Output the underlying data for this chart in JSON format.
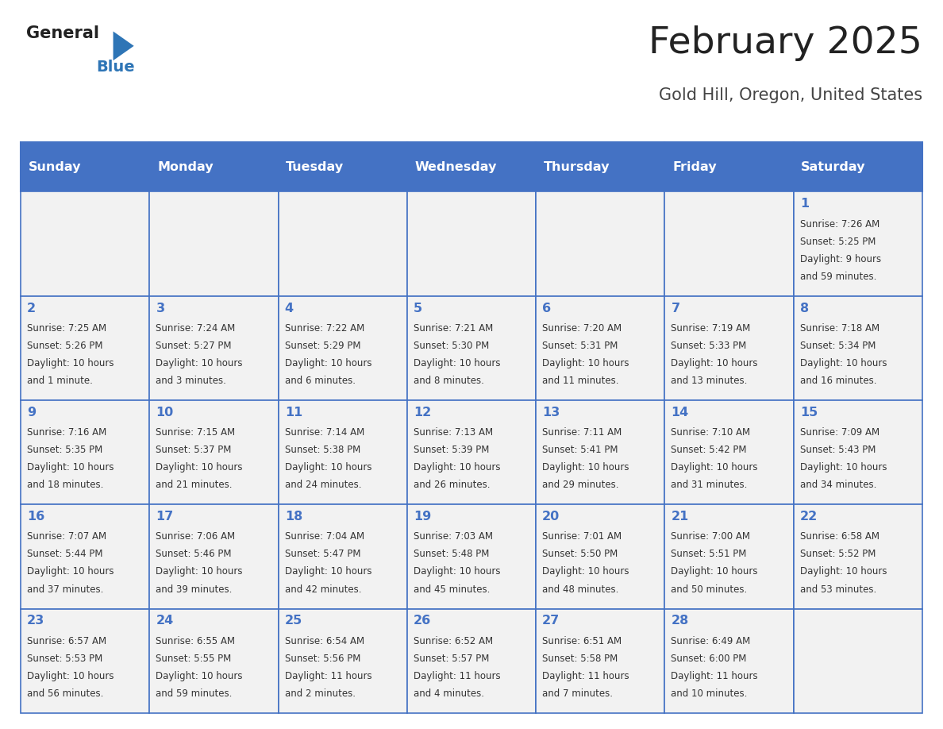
{
  "title": "February 2025",
  "subtitle": "Gold Hill, Oregon, United States",
  "header_bg": "#4472C4",
  "header_text_color": "#FFFFFF",
  "cell_bg": "#F2F2F2",
  "border_color": "#4472C4",
  "day_names": [
    "Sunday",
    "Monday",
    "Tuesday",
    "Wednesday",
    "Thursday",
    "Friday",
    "Saturday"
  ],
  "title_color": "#222222",
  "subtitle_color": "#444444",
  "day_number_color": "#4472C4",
  "info_color": "#333333",
  "logo_general_color": "#222222",
  "logo_blue_color": "#2E75B6",
  "calendar_data": [
    [
      null,
      null,
      null,
      null,
      null,
      null,
      {
        "day": 1,
        "sunrise": "7:26 AM",
        "sunset": "5:25 PM",
        "daylight": "9 hours",
        "daylight2": "and 59 minutes."
      }
    ],
    [
      {
        "day": 2,
        "sunrise": "7:25 AM",
        "sunset": "5:26 PM",
        "daylight": "10 hours",
        "daylight2": "and 1 minute."
      },
      {
        "day": 3,
        "sunrise": "7:24 AM",
        "sunset": "5:27 PM",
        "daylight": "10 hours",
        "daylight2": "and 3 minutes."
      },
      {
        "day": 4,
        "sunrise": "7:22 AM",
        "sunset": "5:29 PM",
        "daylight": "10 hours",
        "daylight2": "and 6 minutes."
      },
      {
        "day": 5,
        "sunrise": "7:21 AM",
        "sunset": "5:30 PM",
        "daylight": "10 hours",
        "daylight2": "and 8 minutes."
      },
      {
        "day": 6,
        "sunrise": "7:20 AM",
        "sunset": "5:31 PM",
        "daylight": "10 hours",
        "daylight2": "and 11 minutes."
      },
      {
        "day": 7,
        "sunrise": "7:19 AM",
        "sunset": "5:33 PM",
        "daylight": "10 hours",
        "daylight2": "and 13 minutes."
      },
      {
        "day": 8,
        "sunrise": "7:18 AM",
        "sunset": "5:34 PM",
        "daylight": "10 hours",
        "daylight2": "and 16 minutes."
      }
    ],
    [
      {
        "day": 9,
        "sunrise": "7:16 AM",
        "sunset": "5:35 PM",
        "daylight": "10 hours",
        "daylight2": "and 18 minutes."
      },
      {
        "day": 10,
        "sunrise": "7:15 AM",
        "sunset": "5:37 PM",
        "daylight": "10 hours",
        "daylight2": "and 21 minutes."
      },
      {
        "day": 11,
        "sunrise": "7:14 AM",
        "sunset": "5:38 PM",
        "daylight": "10 hours",
        "daylight2": "and 24 minutes."
      },
      {
        "day": 12,
        "sunrise": "7:13 AM",
        "sunset": "5:39 PM",
        "daylight": "10 hours",
        "daylight2": "and 26 minutes."
      },
      {
        "day": 13,
        "sunrise": "7:11 AM",
        "sunset": "5:41 PM",
        "daylight": "10 hours",
        "daylight2": "and 29 minutes."
      },
      {
        "day": 14,
        "sunrise": "7:10 AM",
        "sunset": "5:42 PM",
        "daylight": "10 hours",
        "daylight2": "and 31 minutes."
      },
      {
        "day": 15,
        "sunrise": "7:09 AM",
        "sunset": "5:43 PM",
        "daylight": "10 hours",
        "daylight2": "and 34 minutes."
      }
    ],
    [
      {
        "day": 16,
        "sunrise": "7:07 AM",
        "sunset": "5:44 PM",
        "daylight": "10 hours",
        "daylight2": "and 37 minutes."
      },
      {
        "day": 17,
        "sunrise": "7:06 AM",
        "sunset": "5:46 PM",
        "daylight": "10 hours",
        "daylight2": "and 39 minutes."
      },
      {
        "day": 18,
        "sunrise": "7:04 AM",
        "sunset": "5:47 PM",
        "daylight": "10 hours",
        "daylight2": "and 42 minutes."
      },
      {
        "day": 19,
        "sunrise": "7:03 AM",
        "sunset": "5:48 PM",
        "daylight": "10 hours",
        "daylight2": "and 45 minutes."
      },
      {
        "day": 20,
        "sunrise": "7:01 AM",
        "sunset": "5:50 PM",
        "daylight": "10 hours",
        "daylight2": "and 48 minutes."
      },
      {
        "day": 21,
        "sunrise": "7:00 AM",
        "sunset": "5:51 PM",
        "daylight": "10 hours",
        "daylight2": "and 50 minutes."
      },
      {
        "day": 22,
        "sunrise": "6:58 AM",
        "sunset": "5:52 PM",
        "daylight": "10 hours",
        "daylight2": "and 53 minutes."
      }
    ],
    [
      {
        "day": 23,
        "sunrise": "6:57 AM",
        "sunset": "5:53 PM",
        "daylight": "10 hours",
        "daylight2": "and 56 minutes."
      },
      {
        "day": 24,
        "sunrise": "6:55 AM",
        "sunset": "5:55 PM",
        "daylight": "10 hours",
        "daylight2": "and 59 minutes."
      },
      {
        "day": 25,
        "sunrise": "6:54 AM",
        "sunset": "5:56 PM",
        "daylight": "11 hours",
        "daylight2": "and 2 minutes."
      },
      {
        "day": 26,
        "sunrise": "6:52 AM",
        "sunset": "5:57 PM",
        "daylight": "11 hours",
        "daylight2": "and 4 minutes."
      },
      {
        "day": 27,
        "sunrise": "6:51 AM",
        "sunset": "5:58 PM",
        "daylight": "11 hours",
        "daylight2": "and 7 minutes."
      },
      {
        "day": 28,
        "sunrise": "6:49 AM",
        "sunset": "6:00 PM",
        "daylight": "11 hours",
        "daylight2": "and 10 minutes."
      },
      null
    ]
  ]
}
